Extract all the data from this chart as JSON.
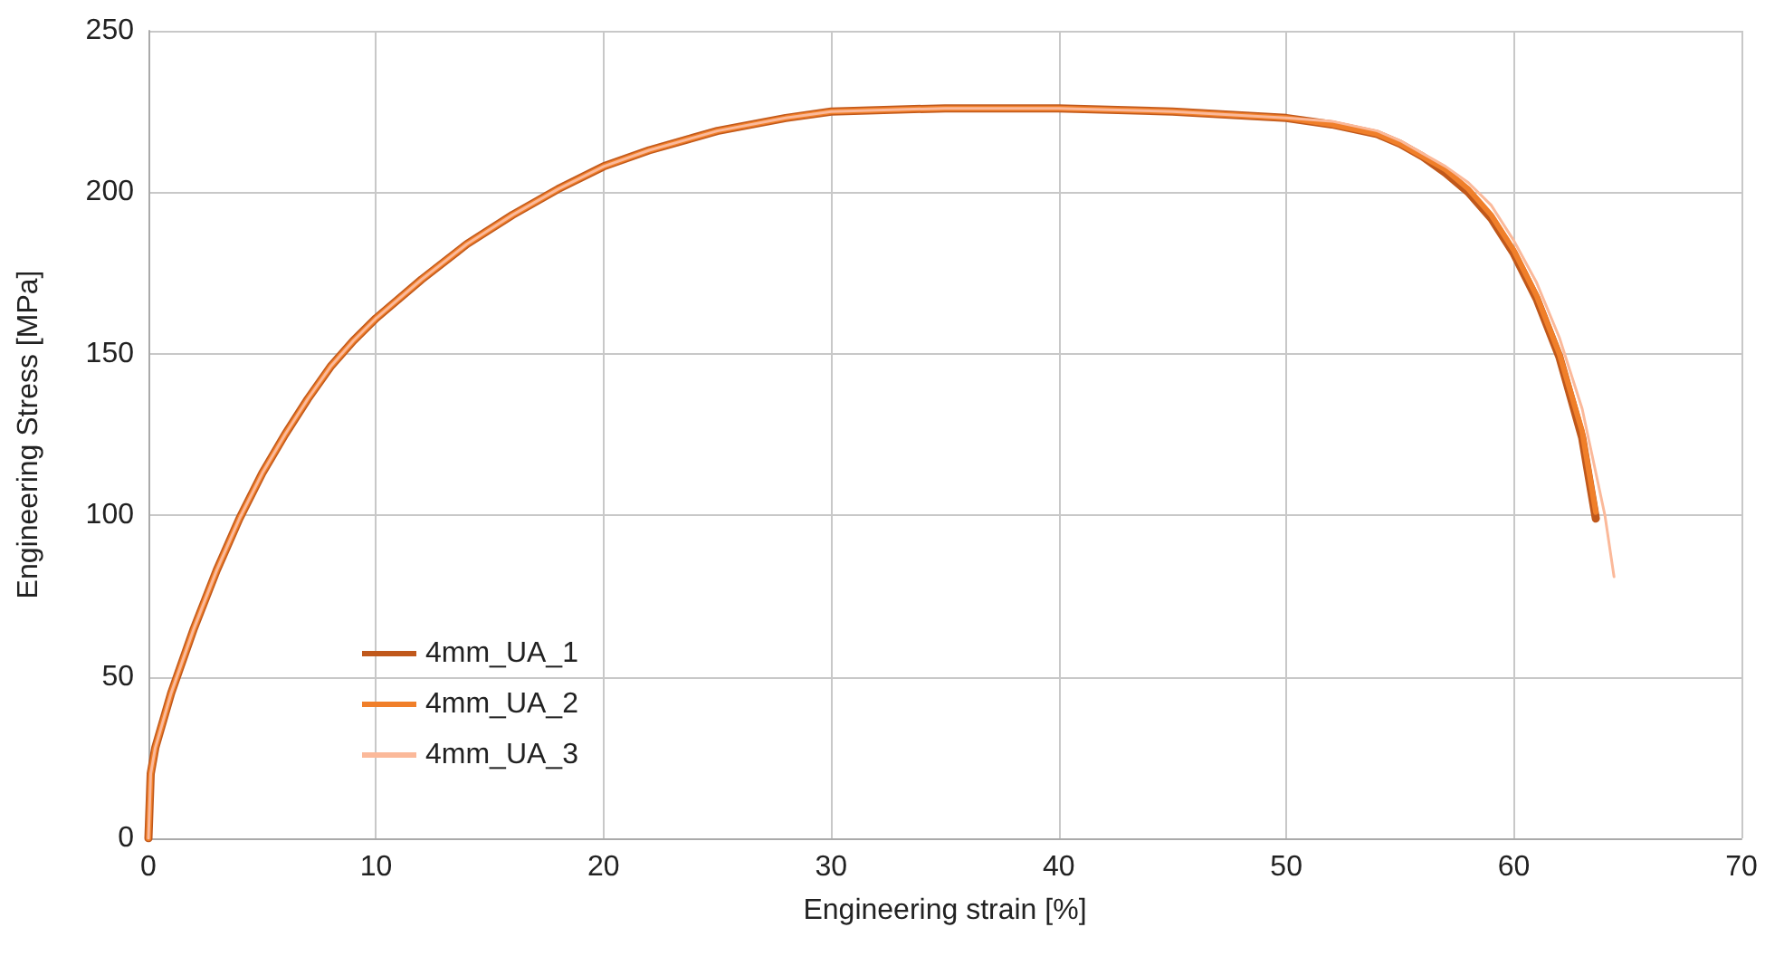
{
  "chart_data": {
    "type": "line",
    "xlabel": "Engineering strain [%]",
    "ylabel": "Engineering Stress [MPa]",
    "xlim": [
      0,
      70
    ],
    "xticks": [
      0,
      10,
      20,
      30,
      40,
      50,
      60,
      70
    ],
    "ylim": [
      0,
      250
    ],
    "yticks": [
      0,
      50,
      100,
      150,
      200,
      250
    ],
    "grid": true,
    "legend": "bottom left",
    "marker": "none",
    "line_style": "solid",
    "series": [
      {
        "name": "4mm_UA_1",
        "color": "#c0581b",
        "x": [
          0,
          0.1,
          0.3,
          1,
          2,
          3,
          4,
          5,
          6,
          7,
          8,
          9,
          10,
          12,
          14,
          16,
          18,
          20,
          22,
          25,
          28,
          30,
          35,
          40,
          45,
          50,
          52,
          54,
          55,
          56,
          57,
          58,
          59,
          60,
          61,
          62,
          63,
          63.6
        ],
        "values": [
          0,
          20,
          28,
          45,
          65,
          83,
          99,
          113,
          125,
          136,
          146,
          154,
          161,
          173,
          184,
          193,
          201,
          208,
          213,
          219,
          223,
          225,
          226,
          226,
          225,
          223,
          221,
          218,
          215,
          211,
          206,
          200,
          192,
          181,
          167,
          149,
          124,
          99
        ]
      },
      {
        "name": "4mm_UA_2",
        "color": "#f07f2a",
        "x": [
          0,
          0.1,
          0.3,
          1,
          2,
          3,
          4,
          5,
          6,
          7,
          8,
          9,
          10,
          12,
          14,
          16,
          18,
          20,
          22,
          25,
          28,
          30,
          35,
          40,
          45,
          50,
          52,
          54,
          55,
          56,
          57,
          58,
          59,
          60,
          61,
          62,
          63,
          63.6
        ],
        "values": [
          0,
          20,
          28,
          45,
          65,
          83,
          99,
          113,
          125,
          136,
          146,
          154,
          161,
          173,
          184,
          193,
          201,
          208,
          213,
          219,
          223,
          225,
          226,
          226,
          225,
          223,
          221,
          218,
          215,
          211,
          207,
          201,
          193,
          182,
          168,
          150,
          126,
          101
        ]
      },
      {
        "name": "4mm_UA_3",
        "color": "#fbb99a",
        "x": [
          0,
          0.1,
          0.3,
          1,
          2,
          3,
          4,
          5,
          6,
          7,
          8,
          9,
          10,
          12,
          14,
          16,
          18,
          20,
          22,
          25,
          28,
          30,
          35,
          40,
          45,
          50,
          52,
          54,
          55,
          56,
          57,
          58,
          59,
          60,
          61,
          62,
          63,
          64,
          64.4
        ],
        "values": [
          0,
          20,
          28,
          45,
          65,
          83,
          99,
          113,
          125,
          136,
          146,
          154,
          161,
          173,
          184,
          193,
          201,
          208,
          213,
          219,
          223,
          225,
          226,
          226,
          225,
          223,
          222,
          219,
          216,
          212,
          208,
          203,
          196,
          185,
          172,
          155,
          133,
          100,
          81
        ]
      }
    ]
  }
}
